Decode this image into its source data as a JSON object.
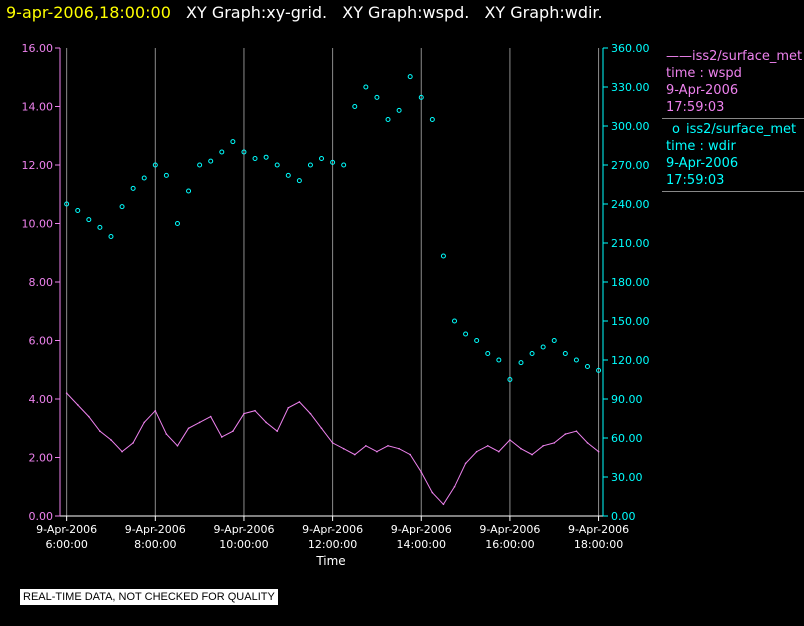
{
  "header": {
    "timestamp": "9-apr-2006,18:00:00",
    "graphs": [
      "XY Graph:xy-grid.",
      "XY Graph:wspd.",
      "XY Graph:wdir."
    ]
  },
  "legend": {
    "entries": [
      {
        "marker": "——",
        "name": "iss2/surface_met",
        "var": "time : wspd",
        "date": "9-Apr-2006",
        "time": "17:59:03"
      },
      {
        "marker": "o",
        "name": "iss2/surface_met",
        "var": "time : wdir",
        "date": "9-Apr-2006",
        "time": "17:59:03"
      }
    ]
  },
  "disclaimer": "REAL-TIME DATA, NOT CHECKED FOR QUALITY",
  "colors": {
    "wspd": "#ee82ee",
    "wdir": "#00ffff",
    "grid": "#8c8c8c",
    "axis_text": "#ffffff"
  },
  "chart_data": {
    "type": "line",
    "title": "",
    "xlabel": "Time",
    "xlim": [
      5.85,
      18.1
    ],
    "xticks": [
      {
        "v": 6,
        "date": "9-Apr-2006",
        "time": "6:00:00"
      },
      {
        "v": 8,
        "date": "9-Apr-2006",
        "time": "8:00:00"
      },
      {
        "v": 10,
        "date": "9-Apr-2006",
        "time": "10:00:00"
      },
      {
        "v": 12,
        "date": "9-Apr-2006",
        "time": "12:00:00"
      },
      {
        "v": 14,
        "date": "9-Apr-2006",
        "time": "14:00:00"
      },
      {
        "v": 16,
        "date": "9-Apr-2006",
        "time": "16:00:00"
      },
      {
        "v": 18,
        "date": "9-Apr-2006",
        "time": "18:00:00"
      }
    ],
    "ylim_left": [
      0,
      16
    ],
    "yticks_left": [
      "0.00",
      "2.00",
      "4.00",
      "6.00",
      "8.00",
      "10.00",
      "12.00",
      "14.00",
      "16.00"
    ],
    "ylim_right": [
      0,
      360
    ],
    "yticks_right": [
      "0.00",
      "30.00",
      "60.00",
      "90.00",
      "120.00",
      "150.00",
      "180.00",
      "210.00",
      "240.00",
      "270.00",
      "300.00",
      "330.00",
      "360.00"
    ],
    "series": [
      {
        "name": "wspd",
        "axis": "left",
        "style": "line",
        "x": [
          6.0,
          6.25,
          6.5,
          6.75,
          7.0,
          7.25,
          7.5,
          7.75,
          8.0,
          8.25,
          8.5,
          8.75,
          9.0,
          9.25,
          9.5,
          9.75,
          10.0,
          10.25,
          10.5,
          10.75,
          11.0,
          11.25,
          11.5,
          11.75,
          12.0,
          12.25,
          12.5,
          12.75,
          13.0,
          13.25,
          13.5,
          13.75,
          14.0,
          14.25,
          14.5,
          14.75,
          15.0,
          15.25,
          15.5,
          15.75,
          16.0,
          16.25,
          16.5,
          16.75,
          17.0,
          17.25,
          17.5,
          17.75,
          18.0
        ],
        "values": [
          4.2,
          3.8,
          3.4,
          2.9,
          2.6,
          2.2,
          2.5,
          3.2,
          3.6,
          2.8,
          2.4,
          3.0,
          3.2,
          3.4,
          2.7,
          2.9,
          3.5,
          3.6,
          3.2,
          2.9,
          3.7,
          3.9,
          3.5,
          3.0,
          2.5,
          2.3,
          2.1,
          2.4,
          2.2,
          2.4,
          2.3,
          2.1,
          1.5,
          0.8,
          0.4,
          1.0,
          1.8,
          2.2,
          2.4,
          2.2,
          2.6,
          2.3,
          2.1,
          2.4,
          2.5,
          2.8,
          2.9,
          2.5,
          2.2
        ]
      },
      {
        "name": "wdir",
        "axis": "right",
        "style": "scatter",
        "x": [
          6.0,
          6.25,
          6.5,
          6.75,
          7.0,
          7.25,
          7.5,
          7.75,
          8.0,
          8.25,
          8.5,
          8.75,
          9.0,
          9.25,
          9.5,
          9.75,
          10.0,
          10.25,
          10.5,
          10.75,
          11.0,
          11.25,
          11.5,
          11.75,
          12.0,
          12.25,
          12.5,
          12.75,
          13.0,
          13.25,
          13.5,
          13.75,
          14.0,
          14.25,
          14.5,
          14.75,
          15.0,
          15.25,
          15.5,
          15.75,
          16.0,
          16.25,
          16.5,
          16.75,
          17.0,
          17.25,
          17.5,
          17.75,
          18.0
        ],
        "values": [
          240,
          235,
          228,
          222,
          215,
          238,
          252,
          260,
          270,
          262,
          225,
          250,
          270,
          273,
          280,
          288,
          280,
          275,
          276,
          270,
          262,
          258,
          270,
          275,
          272,
          270,
          315,
          330,
          322,
          305,
          312,
          338,
          322,
          305,
          200,
          150,
          140,
          135,
          125,
          120,
          105,
          118,
          125,
          130,
          135,
          125,
          120,
          115,
          112
        ]
      }
    ]
  }
}
